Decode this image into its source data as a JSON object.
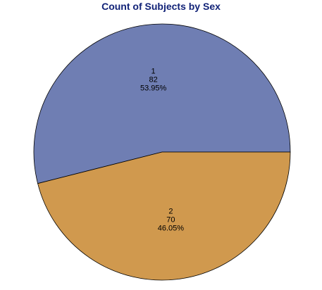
{
  "chart_data": {
    "type": "pie",
    "title": "Count of Subjects by Sex",
    "slices": [
      {
        "label": "1",
        "value": 82,
        "percent": "53.95%",
        "color": "#6f7eb3"
      },
      {
        "label": "2",
        "value": 70,
        "percent": "46.05%",
        "color": "#d0994e"
      }
    ],
    "edge_color": "#000000",
    "start_angle_deg": 0,
    "direction": "counterclockwise"
  }
}
